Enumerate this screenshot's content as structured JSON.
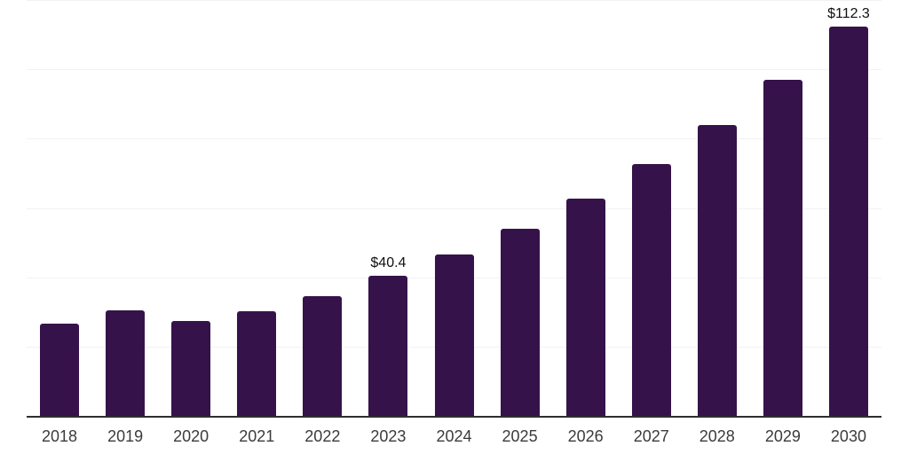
{
  "chart_data": {
    "type": "bar",
    "title": "",
    "xlabel": "",
    "ylabel": "",
    "categories": [
      "2018",
      "2019",
      "2020",
      "2021",
      "2022",
      "2023",
      "2024",
      "2025",
      "2026",
      "2027",
      "2028",
      "2029",
      "2030"
    ],
    "values": [
      26.6,
      30.4,
      27.4,
      30.2,
      34.6,
      40.4,
      46.5,
      54.0,
      62.7,
      72.7,
      83.9,
      96.9,
      112.3
    ],
    "data_labels": [
      "",
      "",
      "",
      "",
      "",
      "$40.4",
      "",
      "",
      "",
      "",
      "",
      "",
      "$112.3"
    ],
    "ylim": [
      0,
      120
    ],
    "grid_step": 20,
    "gridlines": "horizontal",
    "legend_position": "none",
    "bar_color": "#36124A",
    "axis_line_color": "#2E2E2E",
    "gridline_color": "#F2F2F2",
    "tick_label_color": "#3B3B3B",
    "data_label_color": "#101010",
    "background_color": "#FFFFFF"
  }
}
